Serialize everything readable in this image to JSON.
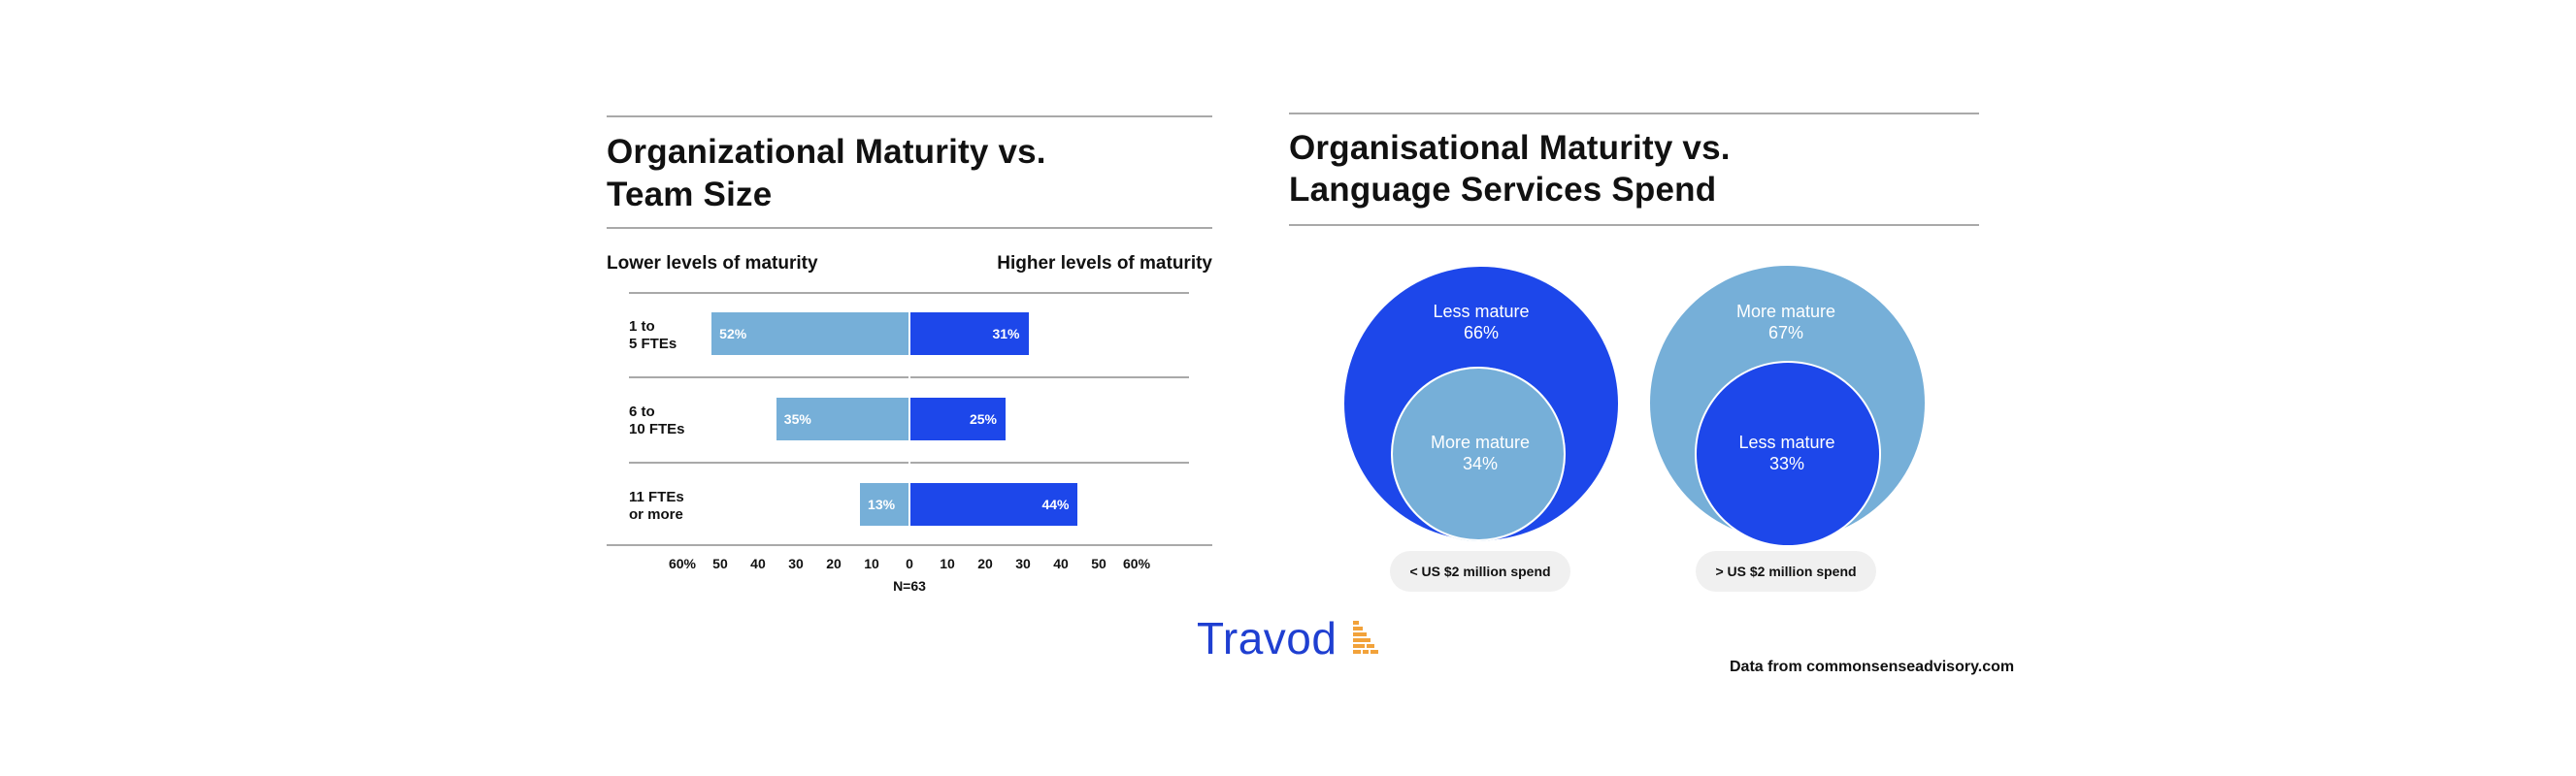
{
  "colors": {
    "lower": "#76afd8",
    "higher": "#1d47ea",
    "rule": "#a9a9a9",
    "brand": "#1f3fd1",
    "brand_accent": "#f2a23a"
  },
  "left_chart": {
    "title_line1": "Organizational Maturity vs.",
    "title_line2": "Team Size",
    "left_header": "Lower levels of maturity",
    "right_header": "Higher levels of maturity",
    "n_label": "N=63"
  },
  "right_chart": {
    "title_line1": "Organisational Maturity vs.",
    "title_line2": "Language Services Spend",
    "groups": [
      {
        "outer_label": "Less mature",
        "outer_value": "66%",
        "inner_label": "More mature",
        "inner_value": "34%",
        "pill": "< US $2 million spend"
      },
      {
        "outer_label": "More mature",
        "outer_value": "67%",
        "inner_label": "Less mature",
        "inner_value": "33%",
        "pill": "> US $2 million spend"
      }
    ]
  },
  "logo": {
    "text": "Travod",
    "icon": "bars-icon"
  },
  "source": "Data from commonsenseadvisory.com",
  "chart_data": [
    {
      "type": "bar",
      "title": "Organizational Maturity vs. Team Size",
      "categories": [
        "1 to 5 FTEs",
        "6 to 10 FTEs",
        "11 FTEs or more"
      ],
      "category_lines": [
        [
          "1 to",
          "5 FTEs"
        ],
        [
          "6 to",
          "10 FTEs"
        ],
        [
          "11 FTEs",
          "or more"
        ]
      ],
      "series": [
        {
          "name": "Lower levels of maturity",
          "values": [
            52,
            35,
            13
          ],
          "labels": [
            "52%",
            "35%",
            "13%"
          ],
          "color": "#76afd8"
        },
        {
          "name": "Higher levels of maturity",
          "values": [
            31,
            25,
            44
          ],
          "labels": [
            "31%",
            "25%",
            "44%"
          ],
          "color": "#1d47ea"
        }
      ],
      "xlim": [
        -60,
        60
      ],
      "tick_values": [
        -60,
        -50,
        -40,
        -30,
        -20,
        -10,
        0,
        10,
        20,
        30,
        40,
        50,
        60
      ],
      "tick_labels": [
        "60%",
        "50",
        "40",
        "30",
        "20",
        "10",
        "0",
        "10",
        "20",
        "30",
        "40",
        "50",
        "60%"
      ],
      "orientation": "horizontal-diverging",
      "grid": false,
      "note": "N=63"
    },
    {
      "type": "pie",
      "title": "Organisational Maturity vs. Language Services Spend",
      "groups": [
        {
          "name": "< US $2 million spend",
          "slices": [
            {
              "label": "Less mature",
              "value": 66
            },
            {
              "label": "More mature",
              "value": 34
            }
          ]
        },
        {
          "name": "> US $2 million spend",
          "slices": [
            {
              "label": "More mature",
              "value": 67
            },
            {
              "label": "Less mature",
              "value": 33
            }
          ]
        }
      ]
    }
  ]
}
